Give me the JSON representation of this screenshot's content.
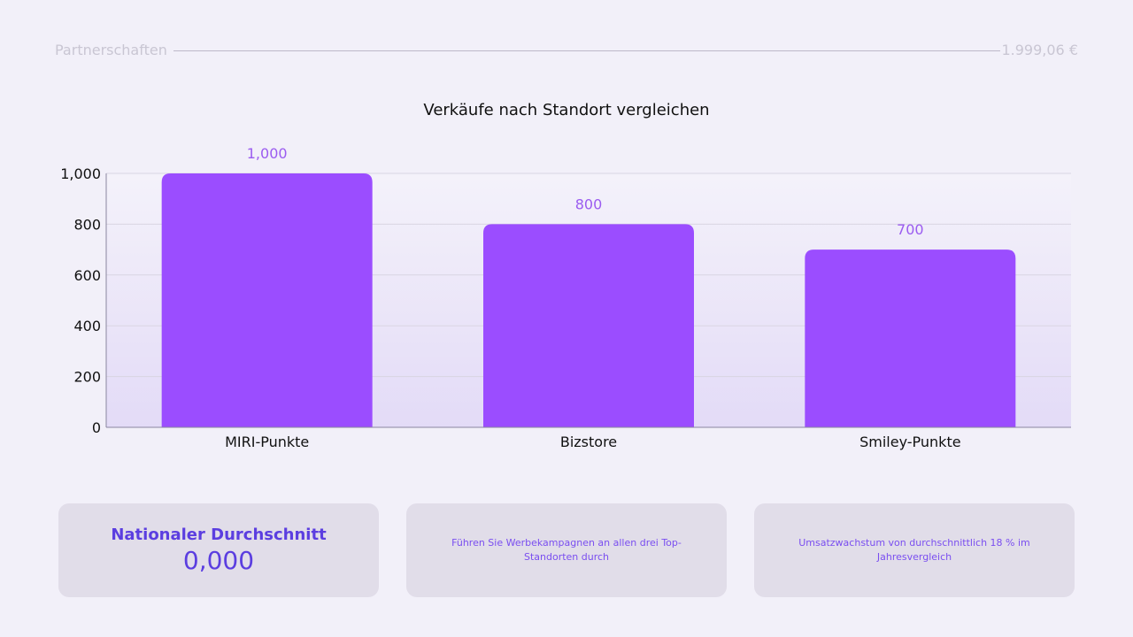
{
  "header": {
    "left": "Partnerschaften",
    "right": "1.999,06 €"
  },
  "chart_data": {
    "type": "bar",
    "title": "Verkäufe nach Standort vergleichen",
    "categories": [
      "MIRI-Punkte",
      "Bizstore",
      "Smiley-Punkte"
    ],
    "values": [
      1000,
      800,
      700
    ],
    "data_labels": [
      "1,000",
      "800",
      "700"
    ],
    "yticks": [
      0,
      200,
      400,
      600,
      800,
      1000
    ],
    "ytick_labels": [
      "0",
      "200",
      "400",
      "600",
      "800",
      "1,000"
    ],
    "ylim": [
      0,
      1000
    ],
    "grid": true,
    "bar_color": "#9b4dff",
    "label_color": "#9b5cf0"
  },
  "cards": [
    {
      "title": "Nationaler Durchschnitt",
      "value": "0,000"
    },
    {
      "text": "Führen Sie Werbekampagnen an allen drei Top-Standorten durch"
    },
    {
      "text": "Umsatzwachstum von durchschnittlich 18 % im Jahresvergleich"
    }
  ]
}
